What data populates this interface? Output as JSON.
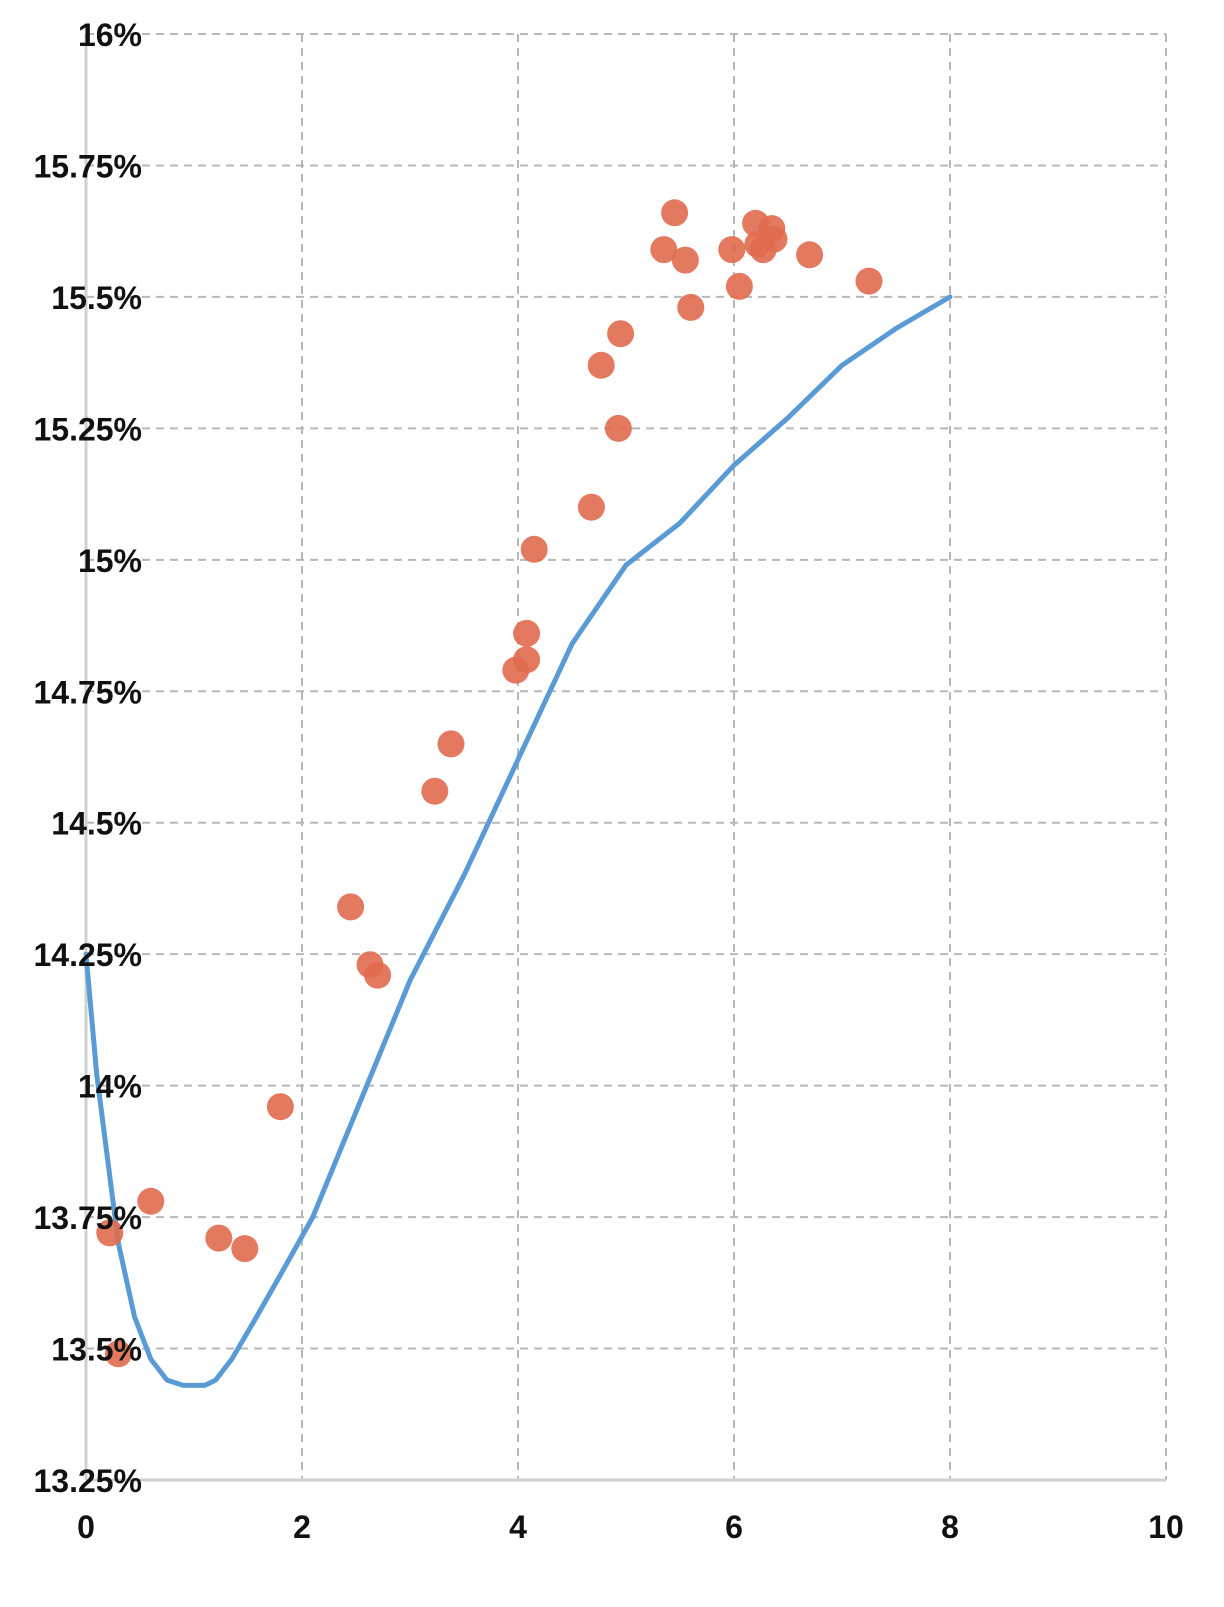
{
  "chart_data": {
    "type": "scatter",
    "title": "",
    "xlabel": "",
    "ylabel": "",
    "xlim": [
      0,
      10
    ],
    "ylim": [
      13.25,
      16
    ],
    "x_ticks": [
      0,
      2,
      4,
      6,
      8,
      10
    ],
    "x_tick_labels": [
      "0",
      "2",
      "4",
      "6",
      "8",
      "10"
    ],
    "y_ticks": [
      13.25,
      13.5,
      13.75,
      14,
      14.25,
      14.5,
      14.75,
      15,
      15.25,
      15.5,
      15.75,
      16
    ],
    "y_tick_labels": [
      "13.25%",
      "13.5%",
      "13.75%",
      "14%",
      "14.25%",
      "14.5%",
      "14.75%",
      "15%",
      "15.25%",
      "15.5%",
      "15.75%",
      "16%"
    ],
    "grid": true,
    "legend": "none",
    "colors": {
      "points": "#e06b4f",
      "line": "#5b9bd5",
      "grid": "#b8b8b8"
    },
    "series": [
      {
        "kind": "scatter",
        "x": [
          0.22,
          0.3,
          0.6,
          1.23,
          1.47,
          1.8,
          2.45,
          2.63,
          2.7,
          3.23,
          3.38,
          3.98,
          4.08,
          4.08,
          4.15,
          4.68,
          4.77,
          4.93,
          4.95,
          5.35,
          5.45,
          5.55,
          5.6,
          5.98,
          6.05,
          6.2,
          6.22,
          6.27,
          6.35,
          6.37,
          6.7,
          7.25
        ],
        "y": [
          13.72,
          13.49,
          13.78,
          13.71,
          13.69,
          13.96,
          14.34,
          14.23,
          14.21,
          14.56,
          14.65,
          14.79,
          14.81,
          14.86,
          15.02,
          15.1,
          15.37,
          15.25,
          15.43,
          15.59,
          15.66,
          15.57,
          15.48,
          15.59,
          15.52,
          15.64,
          15.6,
          15.59,
          15.63,
          15.61,
          15.58,
          15.53
        ]
      },
      {
        "kind": "line",
        "x": [
          0,
          0.1,
          0.2,
          0.3,
          0.45,
          0.6,
          0.75,
          0.9,
          1.0,
          1.1,
          1.2,
          1.35,
          1.55,
          1.8,
          2.1,
          2.5,
          3.0,
          3.5,
          4.0,
          4.5,
          5.0,
          5.5,
          6.0,
          6.5,
          7.0,
          7.5,
          8.0
        ],
        "y": [
          14.25,
          14.02,
          13.86,
          13.7,
          13.56,
          13.48,
          13.44,
          13.43,
          13.43,
          13.43,
          13.44,
          13.48,
          13.55,
          13.64,
          13.75,
          13.95,
          14.2,
          14.4,
          14.62,
          14.84,
          14.99,
          15.07,
          15.18,
          15.27,
          15.37,
          15.44,
          15.5
        ]
      }
    ]
  }
}
